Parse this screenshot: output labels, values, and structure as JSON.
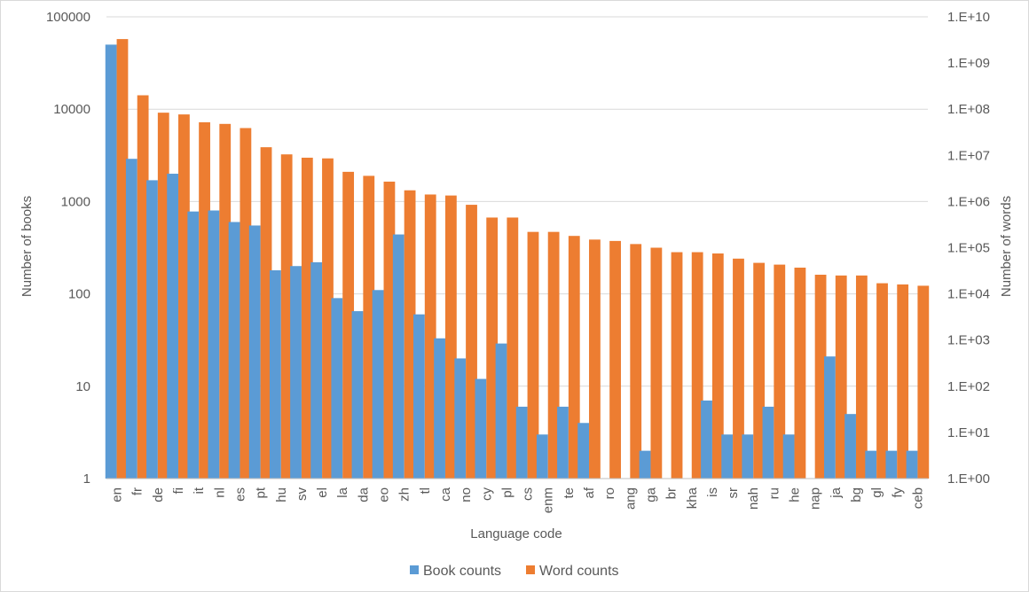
{
  "chart_data": {
    "type": "bar",
    "categories": [
      "en",
      "fr",
      "de",
      "fi",
      "it",
      "nl",
      "es",
      "pt",
      "hu",
      "sv",
      "el",
      "la",
      "da",
      "eo",
      "zh",
      "tl",
      "ca",
      "no",
      "cy",
      "pl",
      "cs",
      "enm",
      "te",
      "af",
      "ro",
      "ang",
      "ga",
      "br",
      "kha",
      "is",
      "sr",
      "nah",
      "ru",
      "he",
      "nap",
      "ja",
      "bg",
      "gl",
      "fy",
      "ceb"
    ],
    "series": [
      {
        "name": "Book counts",
        "axis": "left",
        "color": "#5B9BD5",
        "values": [
          50000,
          2900,
          1700,
          2000,
          780,
          800,
          600,
          550,
          180,
          200,
          220,
          90,
          65,
          110,
          440,
          60,
          33,
          20,
          12,
          29,
          6,
          3,
          6,
          4,
          1,
          1,
          2,
          1,
          1,
          7,
          3,
          3,
          6,
          3,
          1,
          21,
          5,
          2,
          2,
          2
        ]
      },
      {
        "name": "Word counts",
        "axis": "right",
        "color": "#ED7D31",
        "values": [
          3300000000,
          200000000,
          84000000,
          77000000,
          52000000,
          48000000,
          39000000,
          15000000,
          10500000,
          8900000,
          8600000,
          4400000,
          3600000,
          2700000,
          1750000,
          1420000,
          1350000,
          850000,
          450000,
          450000,
          220000,
          220000,
          180000,
          150000,
          140000,
          120000,
          100000,
          80000,
          80000,
          75000,
          58000,
          47000,
          43000,
          37000,
          26000,
          25000,
          25000,
          17000,
          16000,
          15000
        ]
      }
    ],
    "yaxis_left": {
      "label": "Number of books",
      "scale": "log",
      "range": [
        1,
        100000
      ],
      "ticks": [
        "1",
        "10",
        "100",
        "1000",
        "10000",
        "100000"
      ]
    },
    "yaxis_right": {
      "label": "Number of words",
      "scale": "log",
      "range": [
        1,
        10000000000
      ],
      "ticks": [
        "1.E+00",
        "1.E+01",
        "1.E+02",
        "1.E+03",
        "1.E+04",
        "1.E+05",
        "1.E+06",
        "1.E+07",
        "1.E+08",
        "1.E+09",
        "1.E+10"
      ]
    },
    "xaxis": {
      "label": "Language code"
    },
    "grid": true,
    "legend_position": "bottom"
  }
}
